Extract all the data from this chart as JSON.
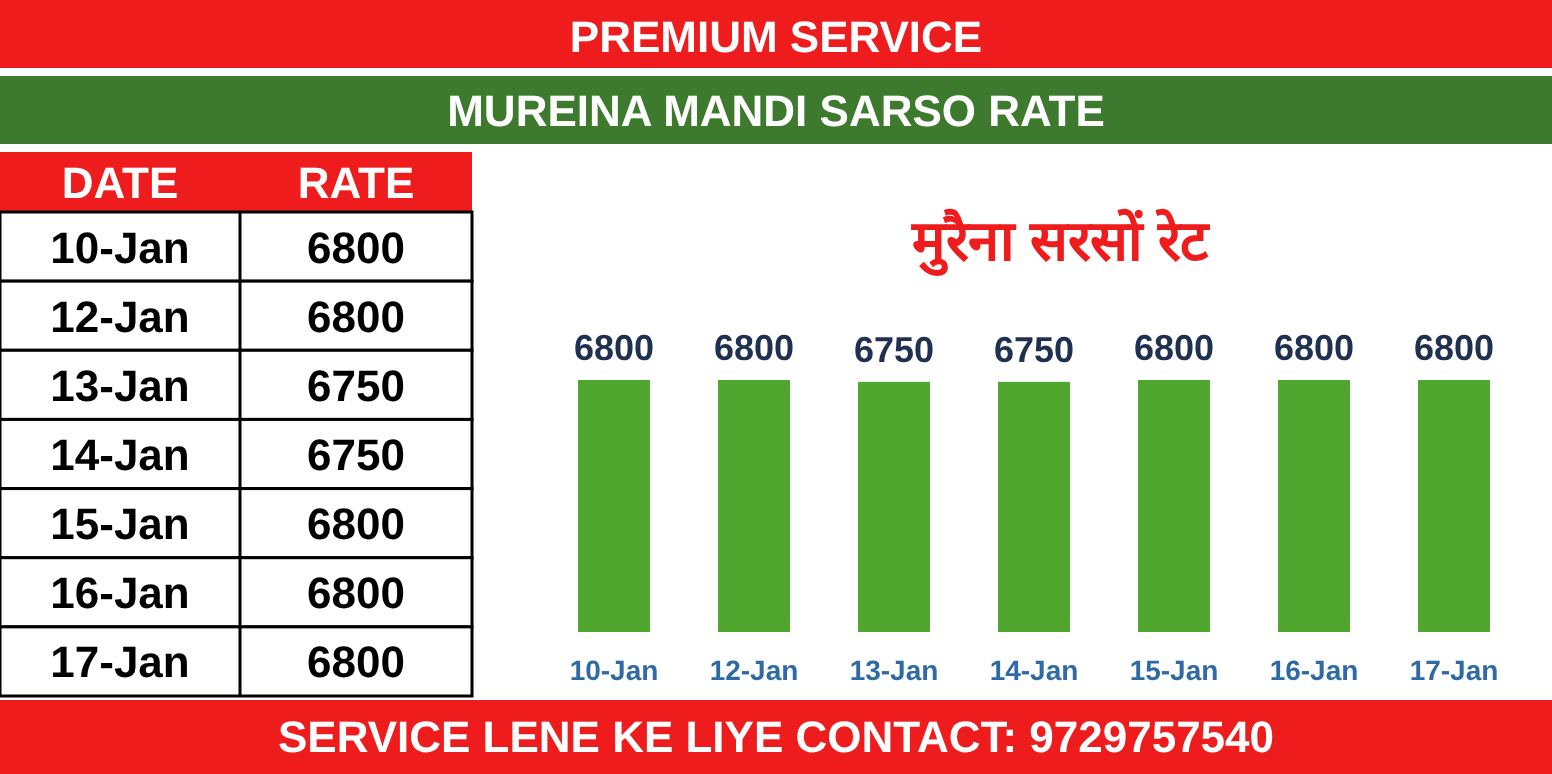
{
  "chart_data": [
    {
      "type": "other",
      "title": "PREMIUM SERVICE",
      "subtitle": "MUREINA MANDI SARSO RATE",
      "annotations": [
        "DATE",
        "RATE",
        "SERVICE LENE KE LIYE CONTACT: 9729757540"
      ],
      "categories": [
        "10-Jan",
        "12-Jan",
        "13-Jan",
        "14-Jan",
        "15-Jan",
        "16-Jan",
        "17-Jan"
      ],
      "values": [
        6800,
        6800,
        6750,
        6750,
        6800,
        6800,
        6800
      ],
      "data_labels": true
    },
    {
      "type": "bar",
      "title": "मुरैना सरसों रेट",
      "categories": [
        "10-Jan",
        "12-Jan",
        "13-Jan",
        "14-Jan",
        "15-Jan",
        "16-Jan",
        "17-Jan"
      ],
      "values": [
        6800,
        6800,
        6750,
        6750,
        6800,
        6800,
        6800
      ],
      "color": "#4fa72f",
      "data_labels": true
    }
  ]
}
